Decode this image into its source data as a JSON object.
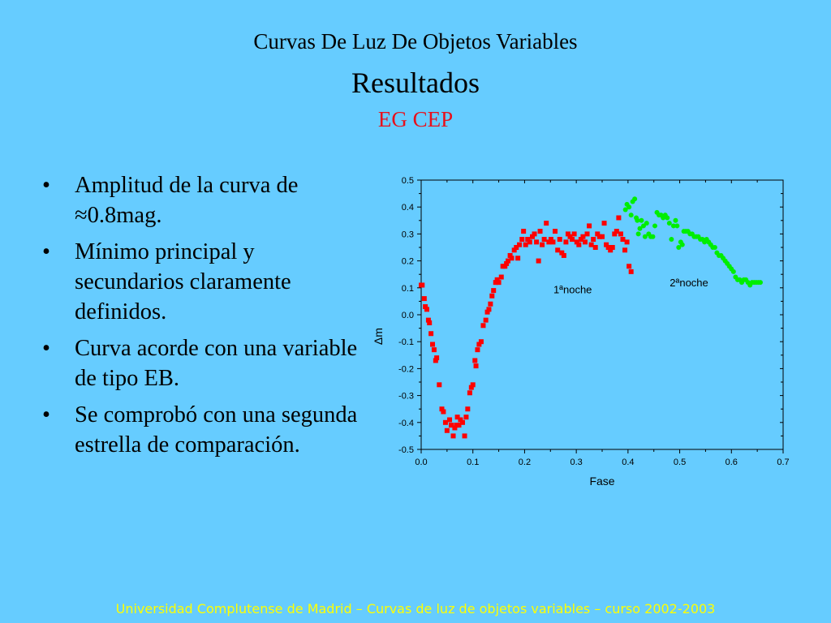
{
  "slide": {
    "title_line1": "Curvas De Luz De Objetos Variables",
    "title_line2": "Resultados",
    "title_line3": "EG CEP",
    "bullets": [
      "Amplitud de la curva de ≈0.8mag.",
      "Mínimo principal y secundarios claramente definidos.",
      "Curva acorde con una variable de tipo EB.",
      "Se comprobó con una segunda estrella de comparación."
    ],
    "bullet_symbol": "•",
    "footer": "Universidad Complutense de Madrid – Curvas de luz de objetos variables  – curso 2002-2003"
  },
  "colors": {
    "background": "#66ccff",
    "subtitle": "#e8101a",
    "footer": "#ffff00",
    "series_1": "#ff0000",
    "series_2": "#00ee00"
  },
  "chart_data": {
    "type": "scatter",
    "xlabel": "Fase",
    "ylabel": "Δm",
    "xlim": [
      0.0,
      0.7
    ],
    "ylim": [
      -0.5,
      0.5
    ],
    "xticks": [
      "0.0",
      "0.1",
      "0.2",
      "0.3",
      "0.4",
      "0.5",
      "0.6",
      "0.7"
    ],
    "yticks": [
      "0.5",
      "0.4",
      "0.3",
      "0.2",
      "0.1",
      "0.0",
      "-0.1",
      "-0.2",
      "-0.3",
      "-0.4",
      "-0.5"
    ],
    "grid": false,
    "annotations": [
      {
        "text": "1ªnoche",
        "x": 0.293,
        "y": 0.08
      },
      {
        "text": "2ªnoche",
        "x": 0.518,
        "y": 0.105
      }
    ],
    "series": [
      {
        "marker": "square",
        "color": "#ff0000",
        "points": [
          [
            0.0,
            0.11
          ],
          [
            0.002,
            0.11
          ],
          [
            0.006,
            0.06
          ],
          [
            0.008,
            0.03
          ],
          [
            0.011,
            0.02
          ],
          [
            0.014,
            -0.02
          ],
          [
            0.016,
            -0.03
          ],
          [
            0.019,
            -0.07
          ],
          [
            0.022,
            -0.11
          ],
          [
            0.025,
            -0.13
          ],
          [
            0.028,
            -0.17
          ],
          [
            0.03,
            -0.16
          ],
          [
            0.035,
            -0.26
          ],
          [
            0.04,
            -0.35
          ],
          [
            0.043,
            -0.36
          ],
          [
            0.047,
            -0.4
          ],
          [
            0.05,
            -0.43
          ],
          [
            0.055,
            -0.39
          ],
          [
            0.058,
            -0.41
          ],
          [
            0.062,
            -0.45
          ],
          [
            0.065,
            -0.42
          ],
          [
            0.068,
            -0.41
          ],
          [
            0.07,
            -0.38
          ],
          [
            0.073,
            -0.41
          ],
          [
            0.076,
            -0.39
          ],
          [
            0.08,
            -0.4
          ],
          [
            0.084,
            -0.45
          ],
          [
            0.087,
            -0.38
          ],
          [
            0.09,
            -0.35
          ],
          [
            0.094,
            -0.29
          ],
          [
            0.097,
            -0.27
          ],
          [
            0.1,
            -0.26
          ],
          [
            0.104,
            -0.17
          ],
          [
            0.106,
            -0.19
          ],
          [
            0.109,
            -0.13
          ],
          [
            0.112,
            -0.11
          ],
          [
            0.116,
            -0.1
          ],
          [
            0.12,
            -0.04
          ],
          [
            0.125,
            -0.02
          ],
          [
            0.128,
            0.01
          ],
          [
            0.131,
            0.02
          ],
          [
            0.134,
            0.04
          ],
          [
            0.137,
            0.07
          ],
          [
            0.14,
            0.09
          ],
          [
            0.144,
            0.12
          ],
          [
            0.147,
            0.13
          ],
          [
            0.15,
            0.12
          ],
          [
            0.155,
            0.14
          ],
          [
            0.158,
            0.18
          ],
          [
            0.162,
            0.18
          ],
          [
            0.165,
            0.19
          ],
          [
            0.168,
            0.2
          ],
          [
            0.172,
            0.22
          ],
          [
            0.175,
            0.21
          ],
          [
            0.18,
            0.24
          ],
          [
            0.184,
            0.25
          ],
          [
            0.187,
            0.21
          ],
          [
            0.19,
            0.26
          ],
          [
            0.195,
            0.28
          ],
          [
            0.198,
            0.31
          ],
          [
            0.202,
            0.26
          ],
          [
            0.206,
            0.28
          ],
          [
            0.21,
            0.27
          ],
          [
            0.215,
            0.29
          ],
          [
            0.219,
            0.3
          ],
          [
            0.223,
            0.27
          ],
          [
            0.227,
            0.2
          ],
          [
            0.23,
            0.31
          ],
          [
            0.234,
            0.26
          ],
          [
            0.238,
            0.28
          ],
          [
            0.242,
            0.34
          ],
          [
            0.247,
            0.27
          ],
          [
            0.251,
            0.28
          ],
          [
            0.255,
            0.27
          ],
          [
            0.259,
            0.31
          ],
          [
            0.264,
            0.24
          ],
          [
            0.268,
            0.28
          ],
          [
            0.272,
            0.23
          ],
          [
            0.276,
            0.22
          ],
          [
            0.28,
            0.27
          ],
          [
            0.284,
            0.3
          ],
          [
            0.288,
            0.29
          ],
          [
            0.292,
            0.28
          ],
          [
            0.296,
            0.3
          ],
          [
            0.301,
            0.27
          ],
          [
            0.305,
            0.26
          ],
          [
            0.309,
            0.28
          ],
          [
            0.313,
            0.29
          ],
          [
            0.317,
            0.27
          ],
          [
            0.321,
            0.3
          ],
          [
            0.325,
            0.33
          ],
          [
            0.329,
            0.26
          ],
          [
            0.333,
            0.28
          ],
          [
            0.337,
            0.25
          ],
          [
            0.341,
            0.3
          ],
          [
            0.345,
            0.29
          ],
          [
            0.35,
            0.29
          ],
          [
            0.354,
            0.34
          ],
          [
            0.358,
            0.26
          ],
          [
            0.362,
            0.25
          ],
          [
            0.366,
            0.24
          ],
          [
            0.37,
            0.25
          ],
          [
            0.374,
            0.3
          ],
          [
            0.378,
            0.31
          ],
          [
            0.382,
            0.36
          ],
          [
            0.386,
            0.3
          ],
          [
            0.39,
            0.28
          ],
          [
            0.394,
            0.24
          ],
          [
            0.398,
            0.27
          ],
          [
            0.402,
            0.18
          ],
          [
            0.406,
            0.16
          ]
        ]
      },
      {
        "marker": "circle",
        "color": "#00ee00",
        "points": [
          [
            0.395,
            0.39
          ],
          [
            0.398,
            0.41
          ],
          [
            0.402,
            0.4
          ],
          [
            0.406,
            0.37
          ],
          [
            0.409,
            0.42
          ],
          [
            0.413,
            0.43
          ],
          [
            0.416,
            0.36
          ],
          [
            0.418,
            0.35
          ],
          [
            0.42,
            0.3
          ],
          [
            0.423,
            0.32
          ],
          [
            0.426,
            0.35
          ],
          [
            0.43,
            0.33
          ],
          [
            0.433,
            0.29
          ],
          [
            0.436,
            0.34
          ],
          [
            0.44,
            0.3
          ],
          [
            0.444,
            0.29
          ],
          [
            0.448,
            0.29
          ],
          [
            0.452,
            0.33
          ],
          [
            0.456,
            0.38
          ],
          [
            0.46,
            0.37
          ],
          [
            0.464,
            0.37
          ],
          [
            0.468,
            0.36
          ],
          [
            0.472,
            0.37
          ],
          [
            0.476,
            0.36
          ],
          [
            0.48,
            0.34
          ],
          [
            0.484,
            0.28
          ],
          [
            0.488,
            0.33
          ],
          [
            0.492,
            0.35
          ],
          [
            0.495,
            0.33
          ],
          [
            0.498,
            0.25
          ],
          [
            0.502,
            0.27
          ],
          [
            0.505,
            0.26
          ],
          [
            0.508,
            0.31
          ],
          [
            0.512,
            0.31
          ],
          [
            0.516,
            0.31
          ],
          [
            0.52,
            0.3
          ],
          [
            0.524,
            0.3
          ],
          [
            0.528,
            0.29
          ],
          [
            0.532,
            0.29
          ],
          [
            0.536,
            0.29
          ],
          [
            0.54,
            0.28
          ],
          [
            0.544,
            0.28
          ],
          [
            0.548,
            0.27
          ],
          [
            0.552,
            0.28
          ],
          [
            0.556,
            0.27
          ],
          [
            0.56,
            0.26
          ],
          [
            0.564,
            0.25
          ],
          [
            0.568,
            0.25
          ],
          [
            0.572,
            0.23
          ],
          [
            0.576,
            0.22
          ],
          [
            0.58,
            0.22
          ],
          [
            0.584,
            0.21
          ],
          [
            0.588,
            0.2
          ],
          [
            0.592,
            0.19
          ],
          [
            0.596,
            0.18
          ],
          [
            0.6,
            0.17
          ],
          [
            0.604,
            0.16
          ],
          [
            0.608,
            0.14
          ],
          [
            0.612,
            0.13
          ],
          [
            0.616,
            0.13
          ],
          [
            0.62,
            0.12
          ],
          [
            0.624,
            0.13
          ],
          [
            0.628,
            0.13
          ],
          [
            0.632,
            0.12
          ],
          [
            0.636,
            0.11
          ],
          [
            0.64,
            0.12
          ],
          [
            0.644,
            0.12
          ],
          [
            0.648,
            0.12
          ],
          [
            0.652,
            0.12
          ],
          [
            0.656,
            0.12
          ]
        ]
      }
    ]
  }
}
